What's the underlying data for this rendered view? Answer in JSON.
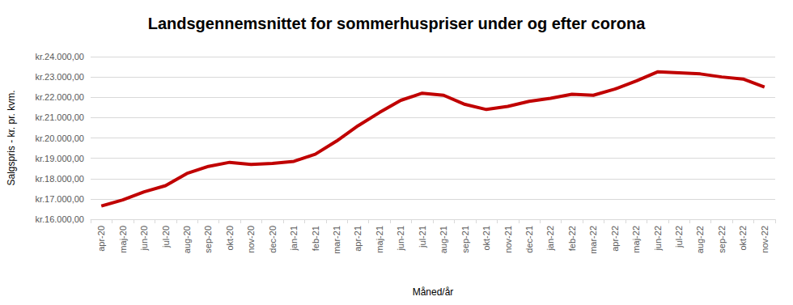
{
  "chart_data": {
    "type": "line",
    "title": "Landsgennemsnittet for sommerhuspriser under og efter corona",
    "x_label": "Måned/år",
    "y_label": "Salgspris - kr. pr. kvm.",
    "categories": [
      "apr-20",
      "maj-20",
      "jun-20",
      "jul-20",
      "aug-20",
      "sep-20",
      "okt-20",
      "nov-20",
      "dec-20",
      "jan-21",
      "feb-21",
      "mar-21",
      "apr-21",
      "maj-21",
      "jun-21",
      "jul-21",
      "aug-21",
      "sep-21",
      "okt-21",
      "nov-21",
      "dec-21",
      "jan-22",
      "feb-22",
      "mar-22",
      "apr-22",
      "maj-22",
      "jun-22",
      "jul-22",
      "aug-22",
      "sep-22",
      "okt-22",
      "nov-22"
    ],
    "values": [
      16650,
      16950,
      17350,
      17650,
      18250,
      18600,
      18800,
      18700,
      18750,
      18850,
      19200,
      19850,
      20600,
      21250,
      21850,
      22200,
      22100,
      21650,
      21400,
      21550,
      21800,
      21950,
      22150,
      22100,
      22400,
      22800,
      23250,
      23200,
      23150,
      23000,
      22900,
      22500
    ],
    "color": "#c00000",
    "ylim": [
      16000,
      24000
    ],
    "yticks": [
      {
        "value": 16000,
        "label": "kr.16.000,00"
      },
      {
        "value": 17000,
        "label": "kr.17.000,00"
      },
      {
        "value": 18000,
        "label": "kr.18.000,00"
      },
      {
        "value": 19000,
        "label": "kr.19.000,00"
      },
      {
        "value": 20000,
        "label": "kr.20.000,00"
      },
      {
        "value": 21000,
        "label": "kr.21.000,00"
      },
      {
        "value": 22000,
        "label": "kr.22.000,00"
      },
      {
        "value": 23000,
        "label": "kr.23.000,00"
      },
      {
        "value": 24000,
        "label": "kr.24.000,00"
      }
    ],
    "grid": true
  }
}
